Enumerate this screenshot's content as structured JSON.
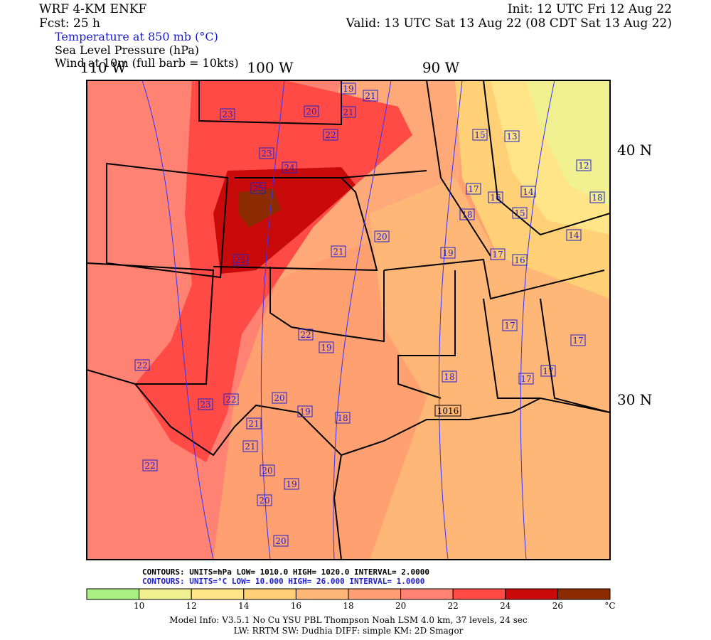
{
  "header": {
    "model": "WRF 4-KM ENKF",
    "forecast": "Fcst:   25 h",
    "init": "Init: 12 UTC Fri 12 Aug 22",
    "valid": "Valid: 13 UTC Sat 13 Aug 22 (08 CDT Sat 13 Aug 22)",
    "fields": [
      "Temperature at 850 mb (°C)",
      "Sea Level Pressure (hPa)",
      "Wind at 10m (full barb = 10kts)"
    ]
  },
  "map": {
    "longitudes": [
      "110 W",
      "100 W",
      "90 W"
    ],
    "latitudes": [
      "40 N",
      "30 N"
    ],
    "temperature_labels": [
      "19",
      "21",
      "20",
      "21",
      "23",
      "22",
      "15",
      "13",
      "23",
      "24",
      "12",
      "25",
      "17",
      "16",
      "14",
      "18",
      "15",
      "18",
      "20",
      "14",
      "21",
      "19",
      "17",
      "16",
      "25",
      "17",
      "22",
      "19",
      "17",
      "22",
      "17",
      "18",
      "17",
      "20",
      "23",
      "22",
      "19",
      "18",
      "21",
      "21",
      "22",
      "20",
      "19",
      "20",
      "20"
    ],
    "pressure_labels": [
      "1016"
    ]
  },
  "contour_info": [
    "CONTOURS:  UNITS=hPa  LOW=   1010.0       HIGH=   1020.0        INTERVAL=    2.0000",
    "CONTOURS:  UNITS=°C  LOW=   10.000       HIGH=   26.000        INTERVAL=    1.0000"
  ],
  "colorbar": {
    "colors": [
      "#a8f080",
      "#f0f090",
      "#ffe588",
      "#ffd075",
      "#ffb777",
      "#ff9e75",
      "#ff8272",
      "#ff4a45",
      "#c80a0a",
      "#8c2a00"
    ],
    "ticks": [
      "10",
      "12",
      "14",
      "16",
      "18",
      "20",
      "22",
      "24",
      "26"
    ],
    "unit": "°C"
  },
  "footer": [
    "Model Info: V3.5.1    No Cu    YSU PBL    Thompson      Noah LSM    4.0 km,   37 levels,     24 sec",
    "LW: RRTM  SW: Dudhia  DIFF: simple  KM: 2D Smagor"
  ]
}
